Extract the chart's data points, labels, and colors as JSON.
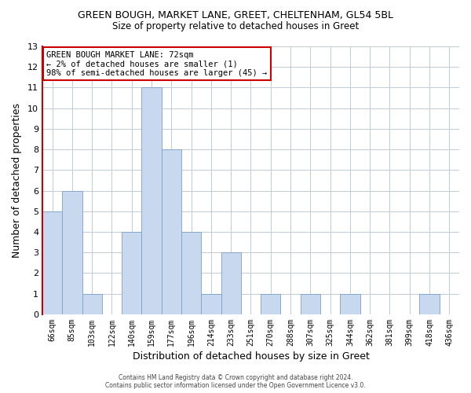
{
  "title": "GREEN BOUGH, MARKET LANE, GREET, CHELTENHAM, GL54 5BL",
  "subtitle": "Size of property relative to detached houses in Greet",
  "xlabel": "Distribution of detached houses by size in Greet",
  "ylabel": "Number of detached properties",
  "bar_color": "#c8d8ee",
  "bar_edge_color": "#7aA0c8",
  "categories": [
    "66sqm",
    "85sqm",
    "103sqm",
    "122sqm",
    "140sqm",
    "159sqm",
    "177sqm",
    "196sqm",
    "214sqm",
    "233sqm",
    "251sqm",
    "270sqm",
    "288sqm",
    "307sqm",
    "325sqm",
    "344sqm",
    "362sqm",
    "381sqm",
    "399sqm",
    "418sqm",
    "436sqm"
  ],
  "values": [
    5,
    6,
    1,
    0,
    4,
    11,
    8,
    4,
    1,
    3,
    0,
    1,
    0,
    1,
    0,
    1,
    0,
    0,
    0,
    1,
    0
  ],
  "ylim": [
    0,
    13
  ],
  "yticks": [
    0,
    1,
    2,
    3,
    4,
    5,
    6,
    7,
    8,
    9,
    10,
    11,
    12,
    13
  ],
  "annotation_title": "GREEN BOUGH MARKET LANE: 72sqm",
  "annotation_line2": "← 2% of detached houses are smaller (1)",
  "annotation_line3": "98% of semi-detached houses are larger (45) →",
  "annotation_box_color": "#ffffff",
  "annotation_box_edge": "#cc0000",
  "spine_color": "#cc0000",
  "footer1": "Contains HM Land Registry data © Crown copyright and database right 2024.",
  "footer2": "Contains public sector information licensed under the Open Government Licence v3.0.",
  "background_color": "#ffffff",
  "grid_color": "#c0ccd8"
}
